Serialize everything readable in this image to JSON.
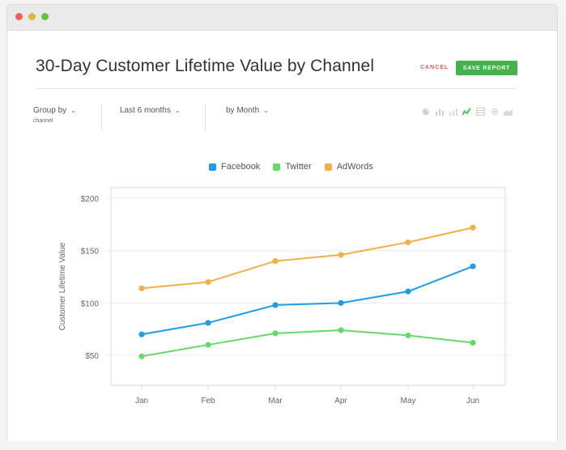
{
  "report": {
    "title": "30-Day Customer Lifetime Value by Channel",
    "cancel_label": "CANCEL",
    "save_label": "SAVE REPORT"
  },
  "controls": {
    "group_by_label": "Group by",
    "group_by_value": "channel",
    "range_label": "Last 6 months",
    "interval_label": "by Month"
  },
  "toolbar_icons": [
    "pie-chart-icon",
    "bar-chart-icon",
    "stacked-bar-icon",
    "line-chart-icon",
    "table-icon",
    "gear-icon",
    "area-chart-icon"
  ],
  "colors": {
    "accent_save": "#41b34a",
    "cancel": "#e05a55",
    "facebook": "#1e9be9",
    "twitter": "#66d96b",
    "adwords": "#f0b14a"
  },
  "chart_data": {
    "type": "line",
    "categories": [
      "Jan",
      "Feb",
      "Mar",
      "Apr",
      "May",
      "Jun"
    ],
    "ylabel": "Customer Lifetime Value",
    "ylim": [
      25,
      200
    ],
    "yticks": [
      "$200",
      "$150",
      "$100",
      "$50"
    ],
    "ytick_values": [
      200,
      150,
      100,
      50
    ],
    "grid": true,
    "legend_position": "top",
    "series": [
      {
        "name": "Facebook",
        "color": "#1e9be9",
        "values": [
          70,
          81,
          98,
          100,
          111,
          135
        ]
      },
      {
        "name": "Twitter",
        "color": "#66d96b",
        "values": [
          49,
          60,
          71,
          74,
          69,
          62
        ]
      },
      {
        "name": "AdWords",
        "color": "#f0b14a",
        "values": [
          114,
          120,
          140,
          146,
          158,
          172
        ]
      }
    ]
  }
}
